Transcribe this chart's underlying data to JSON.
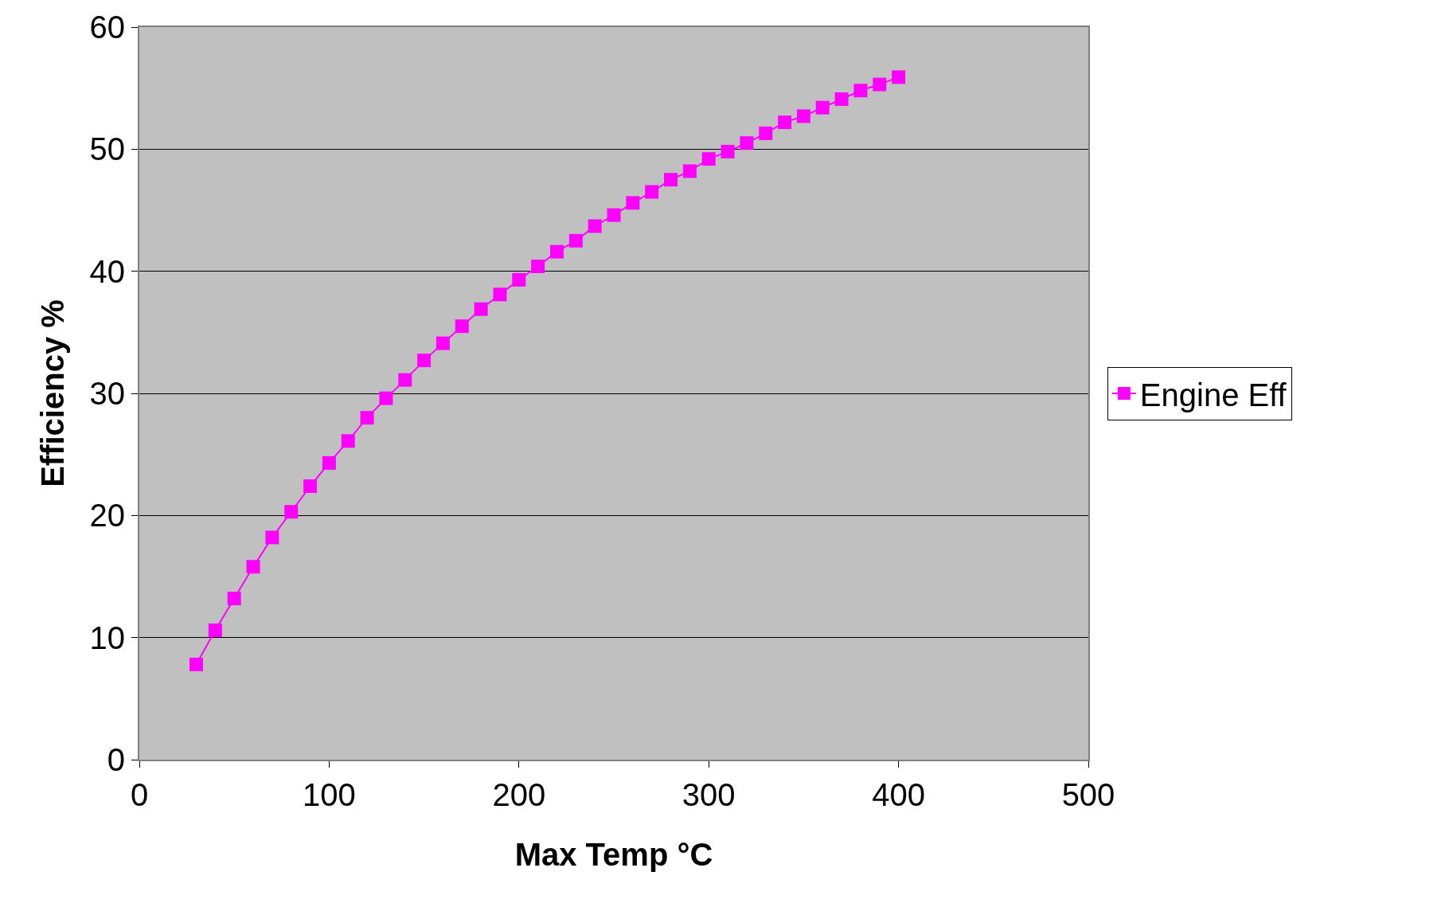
{
  "chart_data": {
    "type": "line",
    "xlabel": "Max Temp °C",
    "ylabel": "Efficiency %",
    "x": [
      30,
      40,
      50,
      60,
      70,
      80,
      90,
      100,
      110,
      120,
      130,
      140,
      150,
      160,
      170,
      180,
      190,
      200,
      210,
      220,
      230,
      240,
      250,
      260,
      270,
      280,
      290,
      300,
      310,
      320,
      330,
      340,
      350,
      360,
      370,
      380,
      390,
      400
    ],
    "series": [
      {
        "name": "Engine Eff",
        "color": "#ff00ff",
        "values": [
          7.8,
          10.6,
          13.2,
          15.8,
          18.2,
          20.3,
          22.4,
          24.3,
          26.1,
          28.0,
          29.6,
          31.1,
          32.7,
          34.1,
          35.5,
          36.9,
          38.1,
          39.3,
          40.4,
          41.6,
          42.5,
          43.7,
          44.6,
          45.6,
          46.5,
          47.5,
          48.2,
          49.2,
          49.8,
          50.5,
          51.3,
          52.2,
          52.7,
          53.4,
          54.1,
          54.8,
          55.3,
          55.9
        ]
      }
    ],
    "xlim": [
      0,
      500
    ],
    "xticks": [
      0,
      100,
      200,
      300,
      400,
      500
    ],
    "ylim": [
      0,
      60
    ],
    "yticks": [
      0,
      10,
      20,
      30,
      40,
      50,
      60
    ],
    "grid": "y",
    "legend": "right",
    "marker": "square",
    "line_style": "solid"
  }
}
